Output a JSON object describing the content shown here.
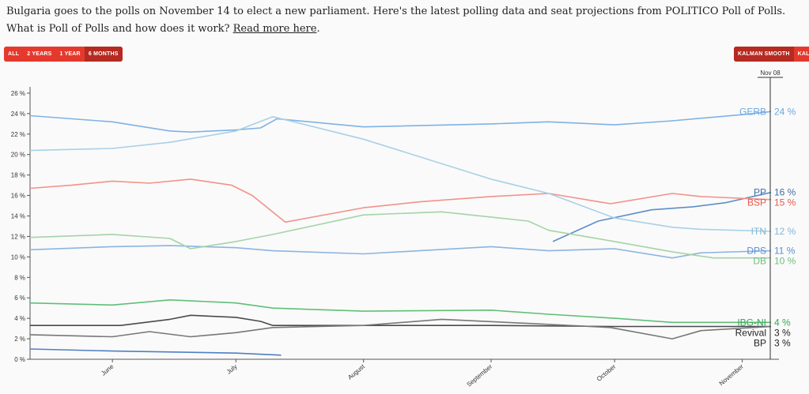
{
  "intro": {
    "line1": "Bulgaria goes to the polls on November 14 to elect a new parliament. Here's the latest polling data and seat projections from POLITICO Poll of Polls.",
    "line2_prefix": "What is Poll of Polls and how does it work?",
    "read_more": "Read more here",
    "line2_suffix": "."
  },
  "range_buttons": [
    "ALL",
    "2 YEARS",
    "1 YEAR",
    "6 MONTHS"
  ],
  "range_active": 3,
  "smooth_buttons": [
    "KALMAN SMOOTH",
    "KALMAN"
  ],
  "smooth_active": 0,
  "colors": {
    "button": "#e4392d",
    "button_active": "#b52a21"
  },
  "chart_data": {
    "type": "line",
    "x_unit": "date",
    "xlim": [
      "2021-05-12",
      "2021-11-08"
    ],
    "ylim": [
      0,
      27
    ],
    "y_ticks": [
      0,
      2,
      4,
      6,
      8,
      10,
      12,
      14,
      16,
      18,
      20,
      22,
      24,
      26
    ],
    "y_tick_suffix": " %",
    "x_ticks": [
      {
        "date": "2021-06-01",
        "label": "June"
      },
      {
        "date": "2021-07-01",
        "label": "July"
      },
      {
        "date": "2021-08-01",
        "label": "August"
      },
      {
        "date": "2021-09-01",
        "label": "September"
      },
      {
        "date": "2021-10-01",
        "label": "October"
      },
      {
        "date": "2021-11-01",
        "label": "November"
      }
    ],
    "cursor_label": "Nov 08",
    "series": [
      {
        "name": "GERB",
        "value_label": "24 %",
        "color": "#7fb2e5",
        "label_color": "#6aa8e0",
        "points": [
          [
            "2021-05-12",
            23.8
          ],
          [
            "2021-06-01",
            23.2
          ],
          [
            "2021-06-15",
            22.3
          ],
          [
            "2021-06-20",
            22.2
          ],
          [
            "2021-07-01",
            22.4
          ],
          [
            "2021-07-07",
            22.6
          ],
          [
            "2021-07-11",
            23.5
          ],
          [
            "2021-08-01",
            22.7
          ],
          [
            "2021-09-01",
            23.0
          ],
          [
            "2021-09-15",
            23.2
          ],
          [
            "2021-10-01",
            22.9
          ],
          [
            "2021-10-15",
            23.3
          ],
          [
            "2021-11-01",
            23.9
          ],
          [
            "2021-11-08",
            24.2
          ]
        ]
      },
      {
        "name": "PP",
        "value_label": "16 %",
        "color": "#5b8fc7",
        "label_color": "#3f6fa8",
        "points": [
          [
            "2021-09-16",
            11.5
          ],
          [
            "2021-09-27",
            13.5
          ],
          [
            "2021-10-10",
            14.6
          ],
          [
            "2021-10-20",
            14.9
          ],
          [
            "2021-10-28",
            15.3
          ],
          [
            "2021-11-08",
            16.3
          ]
        ]
      },
      {
        "name": "BSP",
        "value_label": "15 %",
        "color": "#f1928a",
        "label_color": "#e9574c",
        "points": [
          [
            "2021-05-12",
            16.7
          ],
          [
            "2021-05-22",
            17.0
          ],
          [
            "2021-06-01",
            17.4
          ],
          [
            "2021-06-10",
            17.2
          ],
          [
            "2021-06-20",
            17.6
          ],
          [
            "2021-06-30",
            17.0
          ],
          [
            "2021-07-05",
            16.0
          ],
          [
            "2021-07-13",
            13.4
          ],
          [
            "2021-08-01",
            14.8
          ],
          [
            "2021-08-15",
            15.4
          ],
          [
            "2021-09-01",
            15.9
          ],
          [
            "2021-09-15",
            16.2
          ],
          [
            "2021-09-30",
            15.2
          ],
          [
            "2021-10-15",
            16.2
          ],
          [
            "2021-10-22",
            15.9
          ],
          [
            "2021-11-08",
            15.6
          ]
        ]
      },
      {
        "name": "ITN",
        "value_label": "12 %",
        "color": "#a8d0e6",
        "label_color": "#7fb7d6",
        "points": [
          [
            "2021-05-12",
            20.4
          ],
          [
            "2021-06-01",
            20.6
          ],
          [
            "2021-06-15",
            21.2
          ],
          [
            "2021-07-01",
            22.3
          ],
          [
            "2021-07-10",
            23.7
          ],
          [
            "2021-08-01",
            21.5
          ],
          [
            "2021-09-01",
            17.6
          ],
          [
            "2021-09-15",
            16.2
          ],
          [
            "2021-10-01",
            13.8
          ],
          [
            "2021-10-15",
            12.9
          ],
          [
            "2021-10-22",
            12.7
          ],
          [
            "2021-11-08",
            12.5
          ]
        ]
      },
      {
        "name": "DPS",
        "value_label": "11 %",
        "color": "#8cb4e2",
        "label_color": "#5a8fd1",
        "points": [
          [
            "2021-05-12",
            10.7
          ],
          [
            "2021-06-01",
            11.0
          ],
          [
            "2021-06-15",
            11.1
          ],
          [
            "2021-07-01",
            10.9
          ],
          [
            "2021-07-10",
            10.6
          ],
          [
            "2021-08-01",
            10.3
          ],
          [
            "2021-09-01",
            11.0
          ],
          [
            "2021-09-15",
            10.6
          ],
          [
            "2021-10-01",
            10.8
          ],
          [
            "2021-10-15",
            9.9
          ],
          [
            "2021-10-22",
            10.4
          ],
          [
            "2021-11-08",
            10.6
          ]
        ]
      },
      {
        "name": "DB",
        "value_label": "10 %",
        "color": "#a5d3a8",
        "label_color": "#6cc07a",
        "points": [
          [
            "2021-05-12",
            11.9
          ],
          [
            "2021-06-01",
            12.2
          ],
          [
            "2021-06-15",
            11.8
          ],
          [
            "2021-06-20",
            10.8
          ],
          [
            "2021-07-01",
            11.5
          ],
          [
            "2021-07-10",
            12.2
          ],
          [
            "2021-08-01",
            14.1
          ],
          [
            "2021-08-20",
            14.4
          ],
          [
            "2021-09-10",
            13.5
          ],
          [
            "2021-09-15",
            12.6
          ],
          [
            "2021-10-01",
            11.5
          ],
          [
            "2021-10-15",
            10.5
          ],
          [
            "2021-10-25",
            9.9
          ],
          [
            "2021-11-08",
            9.9
          ]
        ]
      },
      {
        "name": "IBG-NI",
        "value_label": "4 %",
        "color": "#5fbf77",
        "label_color": "#34a853",
        "points": [
          [
            "2021-05-12",
            5.5
          ],
          [
            "2021-06-01",
            5.3
          ],
          [
            "2021-06-15",
            5.8
          ],
          [
            "2021-07-01",
            5.5
          ],
          [
            "2021-07-10",
            5.0
          ],
          [
            "2021-08-01",
            4.7
          ],
          [
            "2021-09-01",
            4.8
          ],
          [
            "2021-09-15",
            4.4
          ],
          [
            "2021-10-01",
            4.0
          ],
          [
            "2021-10-15",
            3.6
          ],
          [
            "2021-11-08",
            3.6
          ]
        ]
      },
      {
        "name": "Revival",
        "value_label": "3 %",
        "color": "#4a4a4a",
        "label_color": "#222222",
        "points": [
          [
            "2021-05-12",
            3.3
          ],
          [
            "2021-05-30",
            3.3
          ],
          [
            "2021-06-03",
            3.3
          ],
          [
            "2021-06-15",
            3.9
          ],
          [
            "2021-06-20",
            4.3
          ],
          [
            "2021-07-01",
            4.1
          ],
          [
            "2021-07-07",
            3.7
          ],
          [
            "2021-07-10",
            3.3
          ],
          [
            "2021-08-01",
            3.3
          ],
          [
            "2021-09-01",
            3.3
          ],
          [
            "2021-10-01",
            3.2
          ],
          [
            "2021-10-15",
            3.2
          ],
          [
            "2021-11-08",
            3.2
          ]
        ]
      },
      {
        "name": "BP",
        "value_label": "3 %",
        "color": "#777777",
        "label_color": "#222222",
        "points": [
          [
            "2021-05-12",
            2.4
          ],
          [
            "2021-06-01",
            2.2
          ],
          [
            "2021-06-10",
            2.7
          ],
          [
            "2021-06-20",
            2.2
          ],
          [
            "2021-07-01",
            2.6
          ],
          [
            "2021-07-10",
            3.1
          ],
          [
            "2021-08-01",
            3.3
          ],
          [
            "2021-08-20",
            3.9
          ],
          [
            "2021-09-10",
            3.5
          ],
          [
            "2021-09-30",
            3.1
          ],
          [
            "2021-10-15",
            2.0
          ],
          [
            "2021-10-22",
            2.8
          ],
          [
            "2021-11-08",
            3.2
          ]
        ]
      },
      {
        "name": "",
        "value_label": "",
        "color": "#4f7fc2",
        "label_color": "#4f7fc2",
        "points": [
          [
            "2021-05-12",
            1.0
          ],
          [
            "2021-06-01",
            0.8
          ],
          [
            "2021-07-01",
            0.6
          ],
          [
            "2021-07-12",
            0.4
          ]
        ]
      }
    ]
  }
}
